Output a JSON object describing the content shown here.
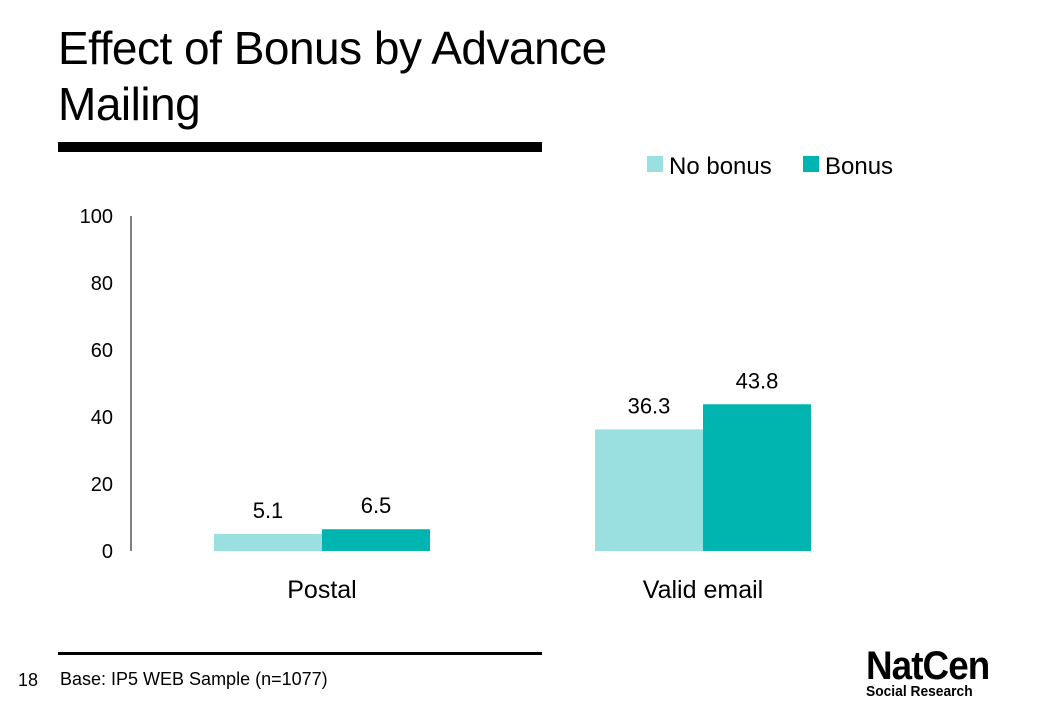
{
  "slide": {
    "title": "Effect of Bonus by Advance Mailing",
    "slide_number": "18",
    "footnote": "Base: IP5 WEB Sample (n=1077)",
    "logo": {
      "line1": "NatCen",
      "line2": "Social Research"
    }
  },
  "chart_data": {
    "type": "bar",
    "title": "",
    "xlabel": "",
    "ylabel": "",
    "categories": [
      "Postal",
      "Valid email"
    ],
    "series": [
      {
        "name": "No bonus",
        "values": [
          5.1,
          36.3
        ],
        "labels": [
          "5.1",
          "36.3"
        ],
        "color": "#9be0e0"
      },
      {
        "name": "Bonus",
        "values": [
          6.5,
          43.8
        ],
        "labels": [
          "6.5",
          "43.8"
        ],
        "color": "#00b5b0"
      }
    ],
    "ylim": [
      0,
      100
    ],
    "yticks": [
      "0",
      "20",
      "40",
      "60",
      "80",
      "100"
    ],
    "grid": false,
    "legend": "top-right"
  }
}
